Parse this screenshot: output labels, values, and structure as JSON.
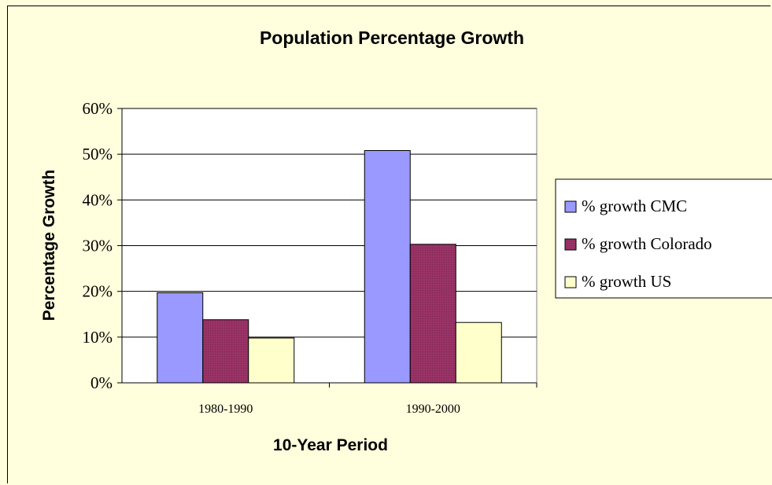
{
  "chart_data": {
    "type": "bar",
    "title": "Population Percentage Growth",
    "xlabel": "10-Year Period",
    "ylabel": "Percentage Growth",
    "categories": [
      "1980-1990",
      "1990-2000"
    ],
    "series": [
      {
        "name": "% growth CMC",
        "values": [
          19.7,
          50.8
        ],
        "color": "#9999ff"
      },
      {
        "name": "% growth Colorado",
        "values": [
          13.8,
          30.3
        ],
        "color": "#993366"
      },
      {
        "name": "% growth US",
        "values": [
          9.8,
          13.2
        ],
        "color": "#ffffcc"
      }
    ],
    "ylim": [
      0,
      60
    ],
    "yticks": [
      0,
      10,
      20,
      30,
      40,
      50,
      60
    ],
    "ytick_labels": [
      "0%",
      "10%",
      "20%",
      "30%",
      "40%",
      "50%",
      "60%"
    ],
    "grid": true,
    "legend_position": "right",
    "background_color": "#fffedd",
    "plot_background_color": "#ffffff"
  }
}
